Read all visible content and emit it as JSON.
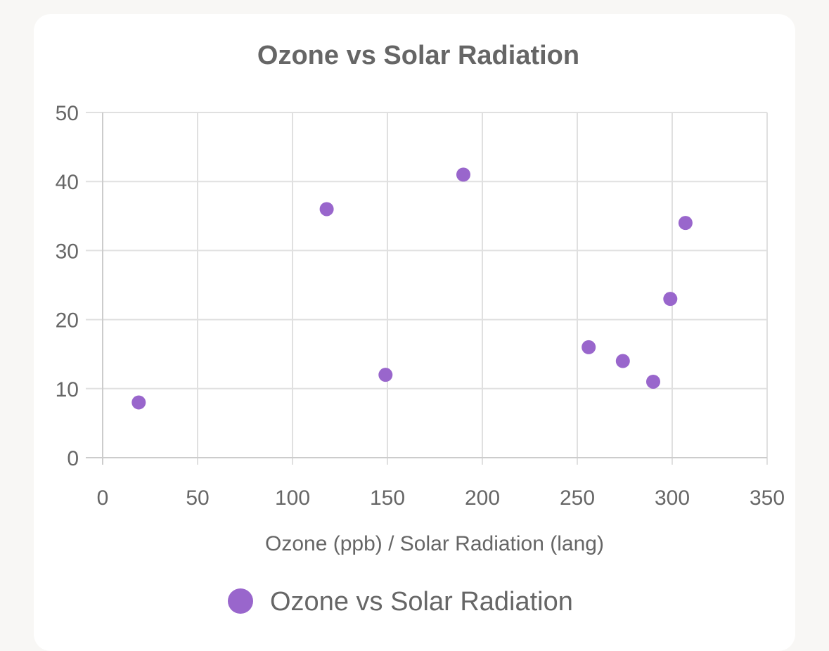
{
  "chart_data": {
    "type": "scatter",
    "title": "Ozone vs Solar Radiation",
    "xlabel": "Ozone (ppb) / Solar Radiation (lang)",
    "ylabel": "",
    "xlim": [
      0,
      350
    ],
    "ylim": [
      0,
      50
    ],
    "x_ticks": [
      "0",
      "50",
      "100",
      "150",
      "200",
      "250",
      "300",
      "350"
    ],
    "y_ticks": [
      "0",
      "10",
      "20",
      "30",
      "40",
      "50"
    ],
    "grid": true,
    "legend_position": "bottom",
    "series": [
      {
        "name": "Ozone vs Solar Radiation",
        "color": "#9966cc",
        "points": [
          {
            "x": 19,
            "y": 8
          },
          {
            "x": 118,
            "y": 36
          },
          {
            "x": 149,
            "y": 12
          },
          {
            "x": 190,
            "y": 41
          },
          {
            "x": 256,
            "y": 16
          },
          {
            "x": 274,
            "y": 14
          },
          {
            "x": 290,
            "y": 11
          },
          {
            "x": 299,
            "y": 23
          },
          {
            "x": 307,
            "y": 34
          }
        ]
      }
    ]
  }
}
